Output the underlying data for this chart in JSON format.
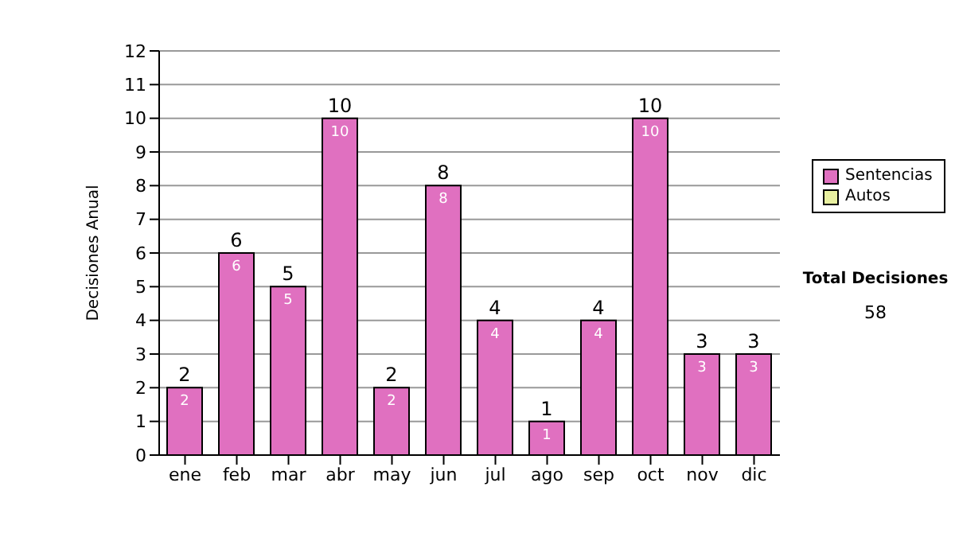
{
  "chart_data": {
    "type": "bar",
    "stacked": true,
    "ylabel": "Decisiones Anual",
    "categories": [
      "ene",
      "feb",
      "mar",
      "abr",
      "may",
      "jun",
      "jul",
      "ago",
      "sep",
      "oct",
      "nov",
      "dic"
    ],
    "series": [
      {
        "name": "Sentencias",
        "color": "#e070c0",
        "values": [
          2,
          6,
          5,
          10,
          2,
          8,
          4,
          1,
          4,
          10,
          3,
          3
        ],
        "value_labels": [
          "2",
          "6",
          "5",
          "10",
          "2",
          "8",
          "4",
          "1",
          "4",
          "10",
          "3",
          "3"
        ]
      },
      {
        "name": "Autos",
        "color": "#e8f0a0",
        "values": [
          null,
          null,
          null,
          null,
          null,
          null,
          null,
          null,
          null,
          null,
          null,
          null
        ]
      }
    ],
    "totals": [
      "2",
      "6",
      "5",
      "10",
      "2",
      "8",
      "4",
      "1",
      "4",
      "10",
      "3",
      "3"
    ],
    "ylim": [
      0,
      12
    ],
    "yticks": [
      0,
      1,
      2,
      3,
      4,
      5,
      6,
      7,
      8,
      9,
      10,
      11,
      12
    ],
    "grid": "y",
    "legend": "right",
    "annotations": [
      "Total Decisiones",
      "58"
    ]
  }
}
